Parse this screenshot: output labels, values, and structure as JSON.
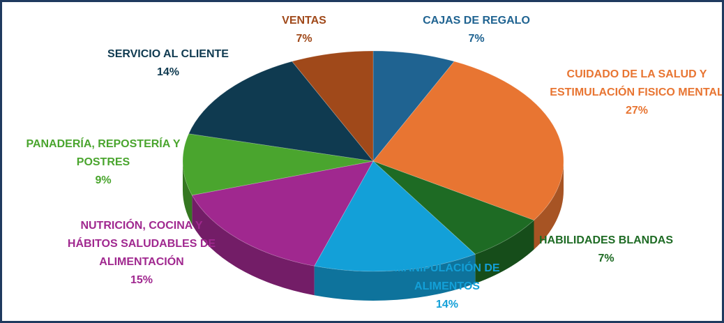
{
  "chart_data": {
    "type": "pie",
    "categories": [
      "CAJAS DE REGALO",
      "CUIDADO DE LA SALUD Y ESTIMULACIÓN FISICO MENTAL",
      "HABILIDADES BLANDAS",
      "MANIPULACIÓN DE ALIMENTOS",
      "NUTRICIÓN, COCINA Y HÁBITOS SALUDABLES DE ALIMENTACIÓN",
      "PANADERÍA, REPOSTERÍA Y POSTRES",
      "SERVICIO AL CLIENTE",
      "VENTAS"
    ],
    "values": [
      7,
      27,
      7,
      14,
      15,
      9,
      14,
      7
    ],
    "value_labels": [
      "7%",
      "27%",
      "7%",
      "14%",
      "15%",
      "9%",
      "14%",
      "7%"
    ],
    "colors": [
      "#1f6391",
      "#e87532",
      "#1e6b24",
      "#13a0d8",
      "#a0288f",
      "#4aa52e",
      "#0f3a50",
      "#a0491a"
    ]
  }
}
